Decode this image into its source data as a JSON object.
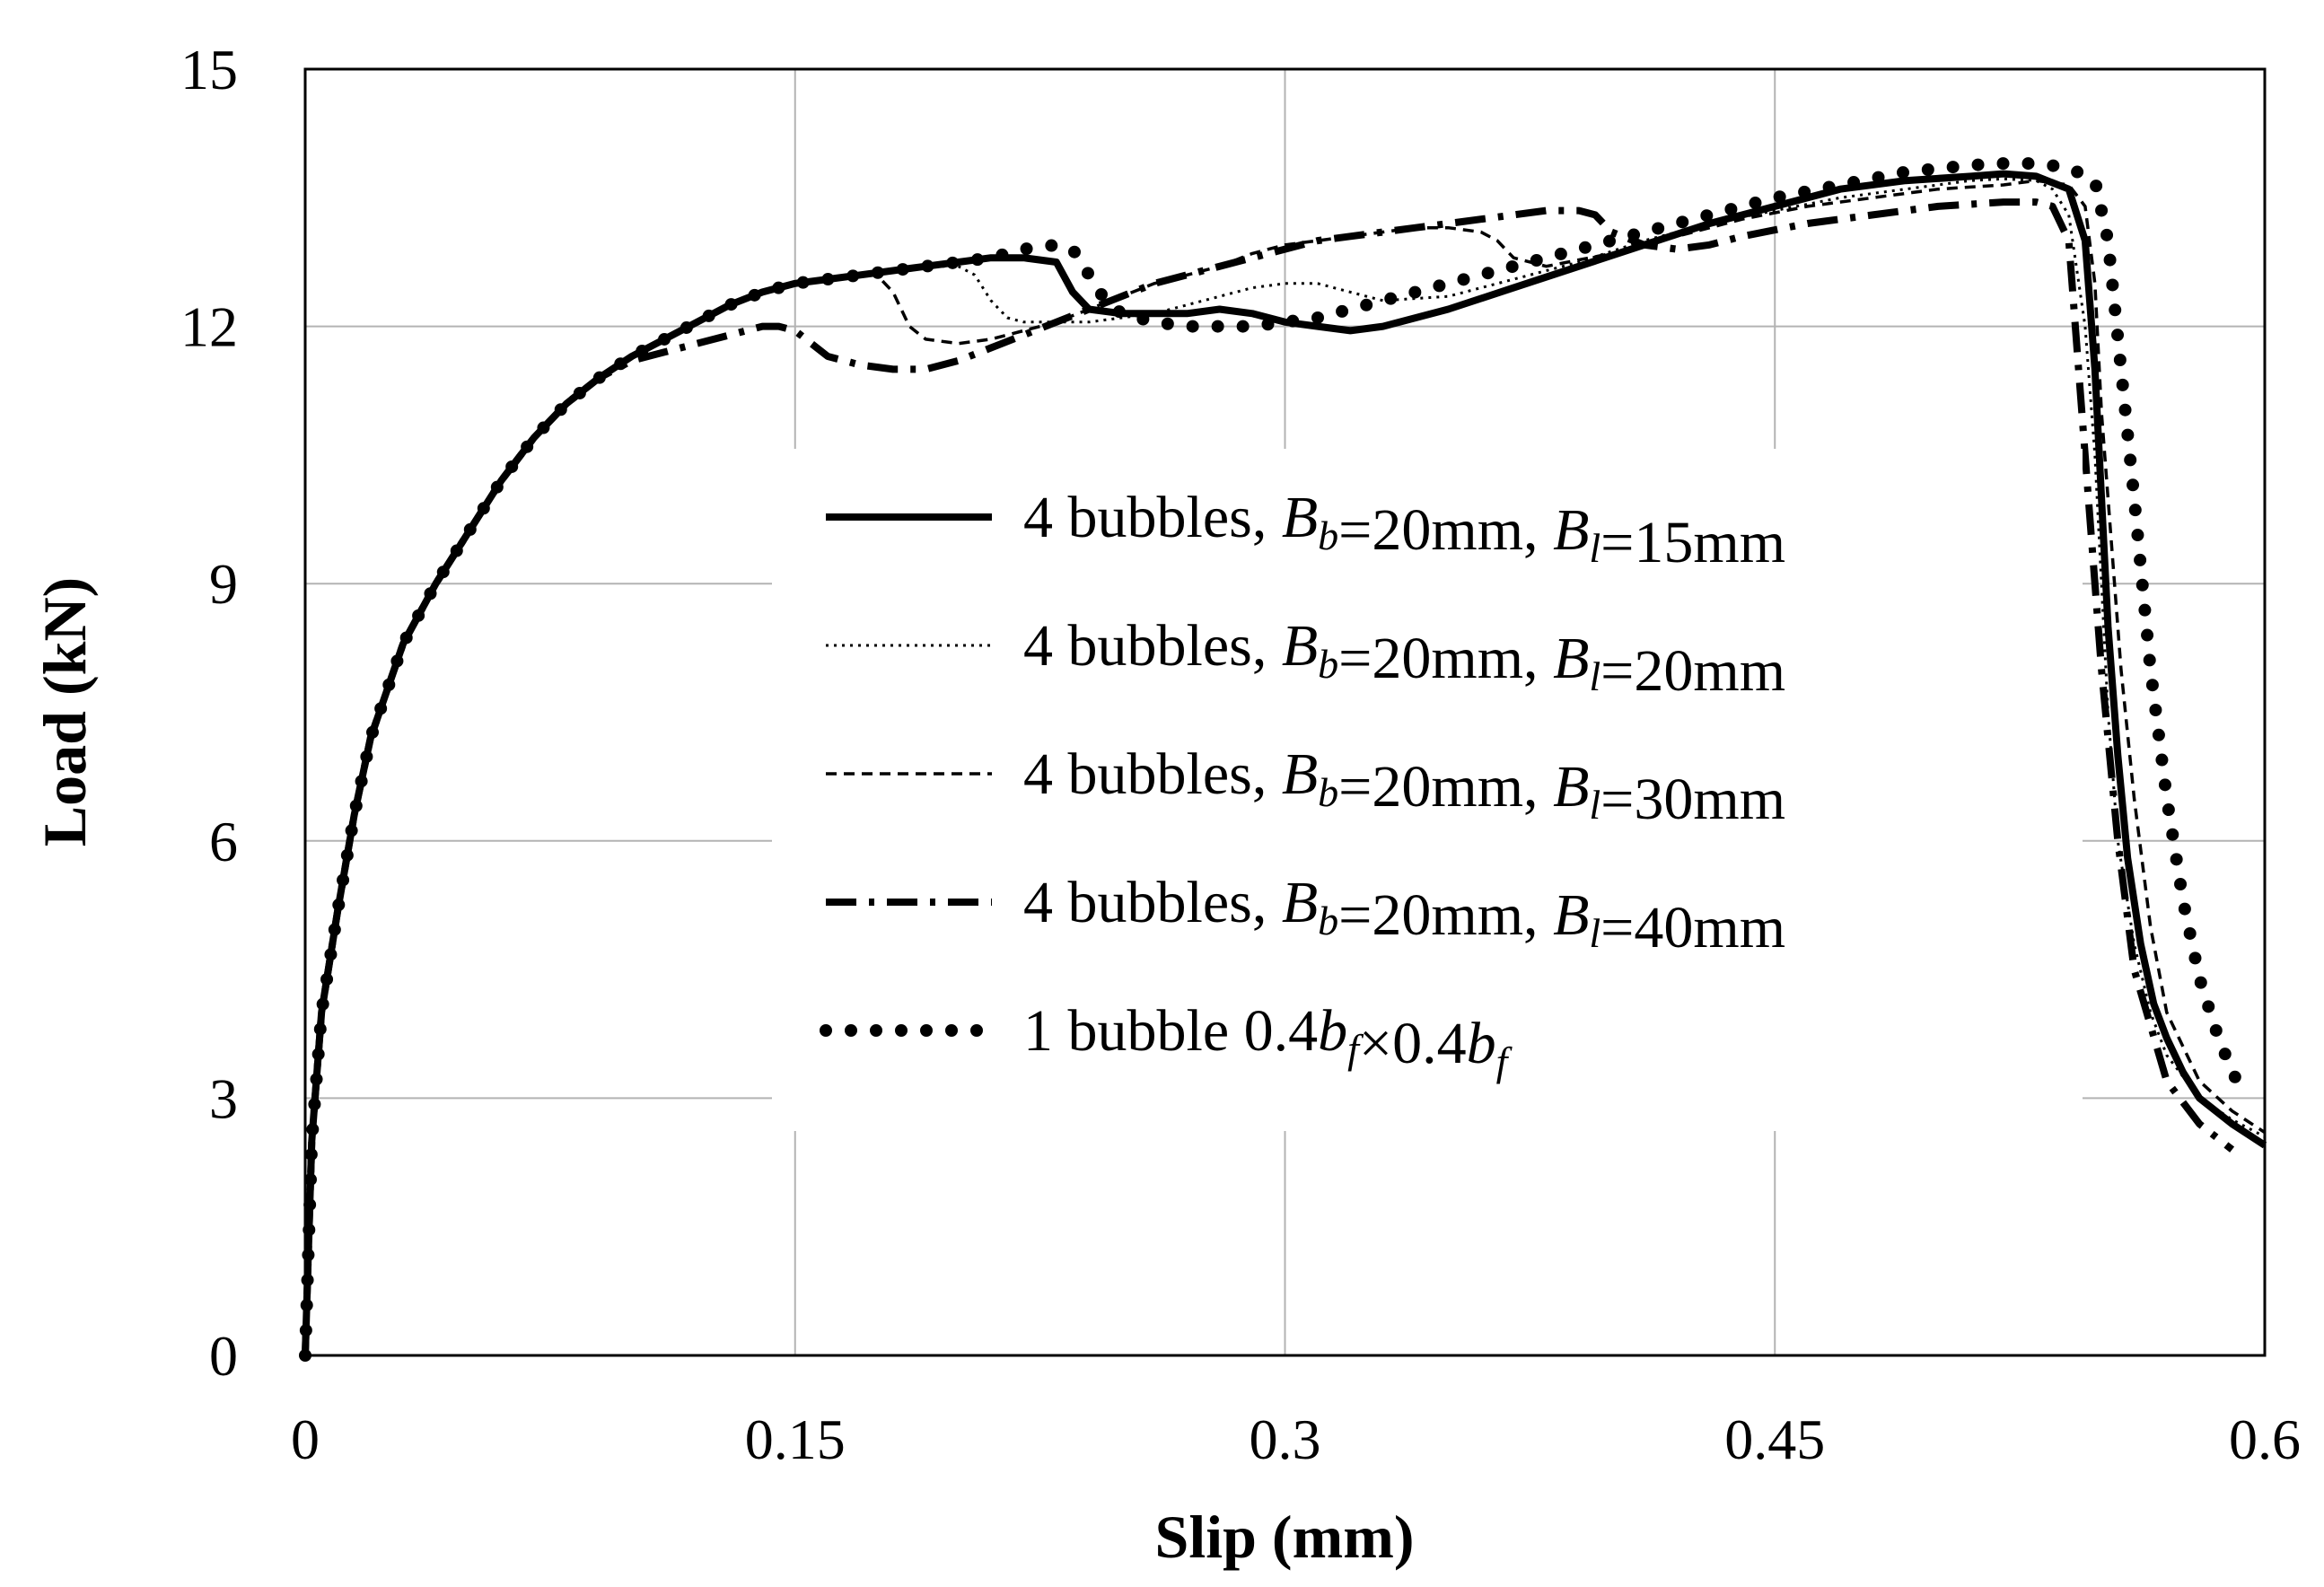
{
  "chart_data": {
    "type": "line",
    "title": "",
    "xlabel": "Slip (mm)",
    "ylabel": "Load (kN)",
    "xlim": [
      0,
      0.6
    ],
    "ylim": [
      0,
      15
    ],
    "grid": true,
    "legend_position": "center-right",
    "xticks": [
      0,
      0.15,
      0.3,
      0.45,
      0.6
    ],
    "xtick_labels": [
      "0",
      "0.15",
      "0.3",
      "0.45",
      "0.6"
    ],
    "yticks": [
      0,
      3,
      6,
      9,
      12,
      15
    ],
    "ytick_labels": [
      "0",
      "3",
      "6",
      "9",
      "12",
      "15"
    ],
    "series": [
      {
        "name": "4 bubbles, Bb=20mm, Bl=15mm",
        "legend": {
          "prefix": "4 bubbles, ",
          "b1": "B",
          "s1": "b",
          "mid": "=20mm, ",
          "b2": "B",
          "s2": "l",
          "suffix": "=15mm"
        },
        "style": "solid-thick",
        "x": [
          0,
          0.002,
          0.005,
          0.01,
          0.015,
          0.02,
          0.03,
          0.04,
          0.05,
          0.06,
          0.07,
          0.08,
          0.09,
          0.1,
          0.11,
          0.12,
          0.13,
          0.14,
          0.15,
          0.16,
          0.17,
          0.18,
          0.19,
          0.2,
          0.21,
          0.22,
          0.23,
          0.235,
          0.24,
          0.25,
          0.26,
          0.27,
          0.28,
          0.29,
          0.3,
          0.31,
          0.32,
          0.33,
          0.35,
          0.37,
          0.39,
          0.41,
          0.43,
          0.45,
          0.47,
          0.49,
          0.51,
          0.52,
          0.53,
          0.54,
          0.545,
          0.548,
          0.55,
          0.552,
          0.555,
          0.558,
          0.562,
          0.566,
          0.57,
          0.575,
          0.58,
          0.59,
          0.6
        ],
        "y": [
          0,
          2.5,
          4.0,
          5.2,
          6.3,
          7.2,
          8.3,
          9.0,
          9.6,
          10.2,
          10.7,
          11.1,
          11.4,
          11.65,
          11.85,
          12.05,
          12.25,
          12.4,
          12.5,
          12.55,
          12.6,
          12.65,
          12.7,
          12.75,
          12.8,
          12.8,
          12.75,
          12.4,
          12.2,
          12.15,
          12.15,
          12.15,
          12.2,
          12.15,
          12.05,
          12.0,
          11.95,
          12.0,
          12.2,
          12.45,
          12.7,
          12.95,
          13.2,
          13.4,
          13.6,
          13.7,
          13.75,
          13.78,
          13.75,
          13.6,
          13.0,
          11.5,
          10.0,
          8.5,
          7.0,
          5.8,
          4.8,
          4.1,
          3.7,
          3.3,
          3.0,
          2.7,
          2.45
        ]
      },
      {
        "name": "4 bubbles, Bb=20mm, Bl=20mm",
        "legend": {
          "prefix": "4 bubbles, ",
          "b1": "B",
          "s1": "b",
          "mid": "=20mm, ",
          "b2": "B",
          "s2": "l",
          "suffix": "=20mm"
        },
        "style": "dotted-thin",
        "x": [
          0,
          0.002,
          0.005,
          0.01,
          0.015,
          0.02,
          0.03,
          0.04,
          0.05,
          0.06,
          0.07,
          0.08,
          0.09,
          0.1,
          0.11,
          0.12,
          0.13,
          0.14,
          0.15,
          0.16,
          0.17,
          0.18,
          0.19,
          0.2,
          0.205,
          0.21,
          0.215,
          0.22,
          0.23,
          0.24,
          0.25,
          0.26,
          0.27,
          0.28,
          0.29,
          0.3,
          0.31,
          0.32,
          0.33,
          0.35,
          0.37,
          0.39,
          0.41,
          0.43,
          0.45,
          0.47,
          0.49,
          0.51,
          0.52,
          0.53,
          0.535,
          0.54,
          0.545,
          0.548,
          0.55,
          0.552,
          0.555,
          0.56,
          0.565,
          0.57,
          0.58,
          0.59,
          0.6
        ],
        "y": [
          0,
          2.5,
          4.0,
          5.2,
          6.3,
          7.2,
          8.3,
          9.0,
          9.6,
          10.2,
          10.7,
          11.1,
          11.4,
          11.65,
          11.85,
          12.05,
          12.25,
          12.4,
          12.5,
          12.55,
          12.6,
          12.65,
          12.7,
          12.7,
          12.6,
          12.3,
          12.1,
          12.05,
          12.05,
          12.05,
          12.1,
          12.15,
          12.25,
          12.35,
          12.45,
          12.5,
          12.5,
          12.4,
          12.3,
          12.35,
          12.55,
          12.75,
          13.0,
          13.2,
          13.35,
          13.5,
          13.6,
          13.7,
          13.72,
          13.7,
          13.6,
          13.3,
          12.0,
          10.5,
          9.0,
          7.5,
          6.0,
          4.8,
          4.0,
          3.5,
          3.0,
          2.75,
          2.55
        ]
      },
      {
        "name": "4 bubbles, Bb=20mm, Bl=30mm",
        "legend": {
          "prefix": "4 bubbles, ",
          "b1": "B",
          "s1": "b",
          "mid": "=20mm, ",
          "b2": "B",
          "s2": "l",
          "suffix": "=30mm"
        },
        "style": "dashed-thin",
        "x": [
          0,
          0.002,
          0.005,
          0.01,
          0.015,
          0.02,
          0.03,
          0.04,
          0.05,
          0.06,
          0.07,
          0.08,
          0.09,
          0.1,
          0.11,
          0.12,
          0.13,
          0.14,
          0.15,
          0.16,
          0.17,
          0.175,
          0.18,
          0.185,
          0.19,
          0.2,
          0.21,
          0.22,
          0.23,
          0.24,
          0.25,
          0.26,
          0.27,
          0.28,
          0.29,
          0.3,
          0.31,
          0.32,
          0.33,
          0.34,
          0.35,
          0.36,
          0.365,
          0.37,
          0.38,
          0.4,
          0.42,
          0.44,
          0.46,
          0.48,
          0.5,
          0.52,
          0.53,
          0.54,
          0.545,
          0.548,
          0.55,
          0.553,
          0.556,
          0.56,
          0.565,
          0.57,
          0.58,
          0.59,
          0.6
        ],
        "y": [
          0,
          2.5,
          4.0,
          5.2,
          6.3,
          7.2,
          8.3,
          9.0,
          9.6,
          10.2,
          10.7,
          11.1,
          11.4,
          11.65,
          11.85,
          12.05,
          12.25,
          12.4,
          12.5,
          12.55,
          12.6,
          12.6,
          12.4,
          12.0,
          11.85,
          11.8,
          11.85,
          11.95,
          12.05,
          12.2,
          12.35,
          12.5,
          12.6,
          12.7,
          12.85,
          12.95,
          13.0,
          13.05,
          13.1,
          13.15,
          13.15,
          13.1,
          13.0,
          12.8,
          12.7,
          12.85,
          13.05,
          13.25,
          13.4,
          13.5,
          13.6,
          13.65,
          13.7,
          13.65,
          13.4,
          12.5,
          11.0,
          9.5,
          8.0,
          6.5,
          5.0,
          4.0,
          3.2,
          2.85,
          2.6
        ]
      },
      {
        "name": "4 bubbles, Bb=20mm, Bl=40mm",
        "legend": {
          "prefix": "4 bubbles, ",
          "b1": "B",
          "s1": "b",
          "mid": "=20mm, ",
          "b2": "B",
          "s2": "l",
          "suffix": "=40mm"
        },
        "style": "dashdot-thick",
        "x": [
          0,
          0.002,
          0.005,
          0.01,
          0.015,
          0.02,
          0.03,
          0.04,
          0.05,
          0.06,
          0.07,
          0.08,
          0.09,
          0.1,
          0.11,
          0.12,
          0.13,
          0.14,
          0.145,
          0.15,
          0.155,
          0.16,
          0.17,
          0.18,
          0.19,
          0.2,
          0.21,
          0.22,
          0.23,
          0.24,
          0.25,
          0.26,
          0.27,
          0.28,
          0.29,
          0.3,
          0.31,
          0.32,
          0.33,
          0.34,
          0.35,
          0.36,
          0.37,
          0.38,
          0.39,
          0.395,
          0.4,
          0.41,
          0.42,
          0.43,
          0.44,
          0.46,
          0.48,
          0.5,
          0.52,
          0.53,
          0.535,
          0.54,
          0.543,
          0.546,
          0.55,
          0.555,
          0.56,
          0.57,
          0.58,
          0.59
        ],
        "y": [
          0,
          2.5,
          4.0,
          5.2,
          6.3,
          7.2,
          8.3,
          9.0,
          9.6,
          10.2,
          10.7,
          11.1,
          11.4,
          11.6,
          11.7,
          11.8,
          11.9,
          12.0,
          12.0,
          11.95,
          11.8,
          11.65,
          11.55,
          11.5,
          11.5,
          11.6,
          11.75,
          11.9,
          12.05,
          12.2,
          12.35,
          12.5,
          12.6,
          12.7,
          12.8,
          12.9,
          13.0,
          13.05,
          13.1,
          13.15,
          13.2,
          13.25,
          13.3,
          13.35,
          13.35,
          13.3,
          13.1,
          12.95,
          12.9,
          12.95,
          13.05,
          13.2,
          13.3,
          13.4,
          13.45,
          13.45,
          13.4,
          13.0,
          11.5,
          10.0,
          8.0,
          6.0,
          4.5,
          3.2,
          2.7,
          2.4
        ]
      },
      {
        "name": "1 bubble 0.4bf×0.4bf",
        "legend": {
          "prefix": "1 bubble 0.4",
          "b1": "b",
          "s1": "f",
          "mid": "×0.4",
          "b2": "b",
          "s2": "f",
          "suffix": ""
        },
        "style": "dotted-thick",
        "x": [
          0,
          0.002,
          0.005,
          0.01,
          0.015,
          0.02,
          0.03,
          0.04,
          0.05,
          0.06,
          0.07,
          0.08,
          0.09,
          0.1,
          0.11,
          0.12,
          0.13,
          0.14,
          0.15,
          0.16,
          0.17,
          0.18,
          0.19,
          0.2,
          0.21,
          0.22,
          0.23,
          0.235,
          0.24,
          0.245,
          0.25,
          0.26,
          0.27,
          0.28,
          0.29,
          0.3,
          0.31,
          0.32,
          0.33,
          0.34,
          0.35,
          0.37,
          0.39,
          0.41,
          0.43,
          0.45,
          0.47,
          0.49,
          0.51,
          0.52,
          0.53,
          0.54,
          0.548,
          0.552,
          0.556,
          0.56,
          0.565,
          0.57,
          0.575,
          0.58,
          0.585,
          0.59,
          0.595
        ],
        "y": [
          0,
          2.5,
          4.0,
          5.2,
          6.3,
          7.2,
          8.3,
          9.0,
          9.6,
          10.2,
          10.7,
          11.1,
          11.4,
          11.65,
          11.85,
          12.05,
          12.25,
          12.4,
          12.5,
          12.55,
          12.6,
          12.65,
          12.7,
          12.75,
          12.8,
          12.9,
          12.95,
          12.9,
          12.6,
          12.3,
          12.15,
          12.05,
          12.0,
          12.0,
          12.0,
          12.05,
          12.1,
          12.2,
          12.3,
          12.4,
          12.5,
          12.7,
          12.9,
          13.1,
          13.3,
          13.5,
          13.65,
          13.8,
          13.88,
          13.9,
          13.9,
          13.85,
          13.7,
          13.0,
          11.5,
          10.0,
          8.0,
          6.5,
          5.3,
          4.4,
          3.8,
          3.3,
          3.0
        ]
      }
    ]
  }
}
